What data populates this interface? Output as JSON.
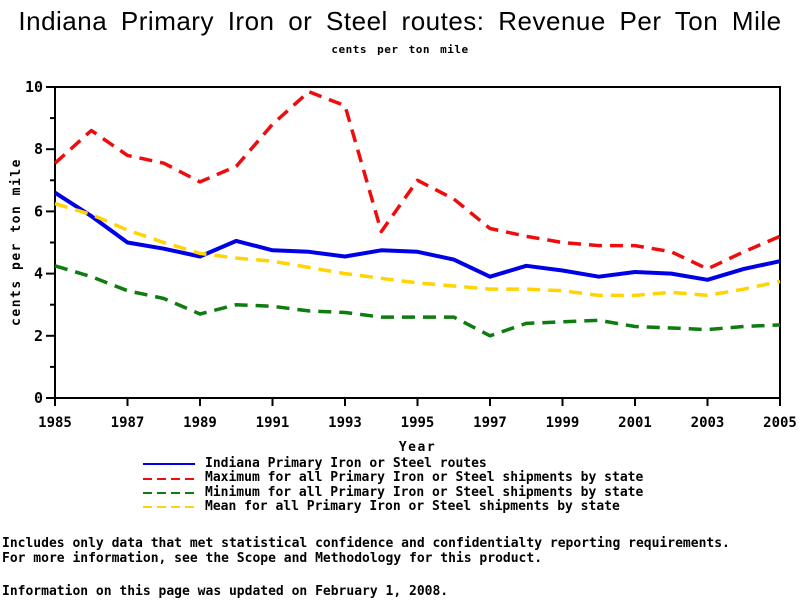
{
  "chart": {
    "title": "Indiana Primary Iron or Steel routes: Revenue Per Ton Mile",
    "subtitle": "cents per ton mile"
  },
  "chart_data": {
    "type": "line",
    "title": "Indiana Primary Iron or Steel routes: Revenue Per Ton Mile",
    "subtitle": "cents per ton mile",
    "xlabel": "Year",
    "ylabel": "cents per ton mile",
    "xlim": [
      1985,
      2005
    ],
    "ylim": [
      0,
      10
    ],
    "x_ticks": [
      1985,
      1987,
      1989,
      1991,
      1993,
      1995,
      1997,
      1999,
      2001,
      2003,
      2005
    ],
    "y_ticks": [
      0,
      2,
      4,
      6,
      8,
      10
    ],
    "y_minor_ticks": [
      1,
      3,
      5,
      7,
      9
    ],
    "grid": false,
    "legend_position": "bottom",
    "x": [
      1985,
      1986,
      1987,
      1988,
      1989,
      1990,
      1991,
      1992,
      1993,
      1994,
      1995,
      1996,
      1997,
      1998,
      1999,
      2000,
      2001,
      2002,
      2003,
      2004,
      2005
    ],
    "series": [
      {
        "key": "indiana-routes",
        "name": "Indiana Primary Iron or Steel routes",
        "color": "#0000e6",
        "style": "solid",
        "width": 4,
        "values": [
          6.6,
          5.85,
          5.0,
          4.8,
          4.55,
          5.05,
          4.75,
          4.7,
          4.55,
          4.75,
          4.7,
          4.45,
          3.9,
          4.25,
          4.1,
          3.9,
          4.05,
          4.0,
          3.8,
          4.15,
          4.4
        ]
      },
      {
        "key": "maximum-by-state",
        "name": "Maximum for all Primary Iron or Steel shipments by state",
        "color": "#ee0c0c",
        "style": "dashed",
        "width": 3.5,
        "values": [
          7.55,
          8.6,
          7.8,
          7.55,
          6.95,
          7.45,
          8.8,
          9.85,
          9.4,
          5.35,
          7.0,
          6.4,
          5.45,
          5.2,
          5.0,
          4.9,
          4.9,
          4.7,
          4.15,
          4.7,
          5.2
        ]
      },
      {
        "key": "minimum-by-state",
        "name": "Minimum for all Primary Iron or Steel shipments by state",
        "color": "#0e7c0e",
        "style": "dashed",
        "width": 3.5,
        "values": [
          4.25,
          3.9,
          3.45,
          3.2,
          2.7,
          3.0,
          2.95,
          2.8,
          2.75,
          2.6,
          2.6,
          2.6,
          2.0,
          2.4,
          2.45,
          2.5,
          2.3,
          2.25,
          2.2,
          2.3,
          2.35
        ]
      },
      {
        "key": "mean-by-state",
        "name": "Mean for all Primary Iron or Steel shipments by state",
        "color": "#ffd400",
        "style": "dashed",
        "width": 3.5,
        "values": [
          6.25,
          5.9,
          5.4,
          5.0,
          4.65,
          4.5,
          4.4,
          4.2,
          4.0,
          3.85,
          3.7,
          3.6,
          3.5,
          3.5,
          3.45,
          3.3,
          3.3,
          3.4,
          3.3,
          3.5,
          3.75
        ]
      }
    ]
  },
  "footnotes": [
    "Includes only data that met statistical confidence and confidentialty reporting requirements.",
    "For more information, see the Scope and Methodology for this product.",
    "Information on this page was updated on February 1, 2008."
  ]
}
